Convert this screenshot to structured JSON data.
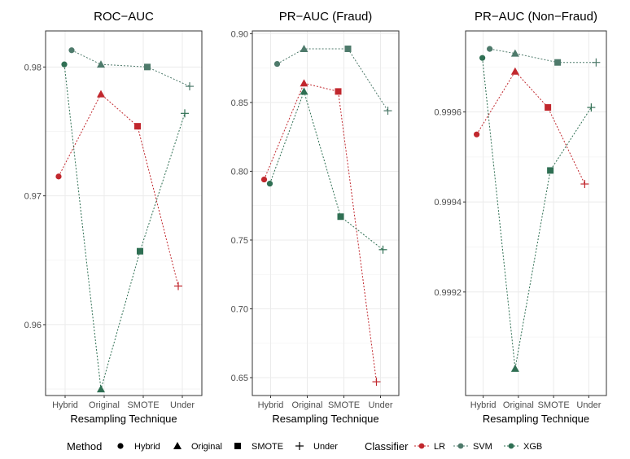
{
  "chart_data": [
    {
      "type": "line",
      "title": "ROC−AUC",
      "xlabel": "Resampling Technique",
      "ylabel": "",
      "categories": [
        "Hybrid",
        "Original",
        "SMOTE",
        "Under"
      ],
      "ylim": [
        0.9545,
        0.9828
      ],
      "yticks": [
        0.96,
        0.97,
        0.98
      ],
      "ytick_labels": [
        "0.96",
        "0.97",
        "0.98"
      ],
      "grid": true,
      "series": [
        {
          "name": "LR",
          "values": [
            0.9715,
            0.9779,
            0.9754,
            0.963
          ]
        },
        {
          "name": "SVM",
          "values": [
            0.9813,
            0.9802,
            0.98,
            0.9785
          ]
        },
        {
          "name": "XGB",
          "values": [
            0.9802,
            0.955,
            0.9657,
            0.9764
          ]
        }
      ]
    },
    {
      "type": "line",
      "title": "PR−AUC (Fraud)",
      "xlabel": "Resampling Technique",
      "ylabel": "",
      "categories": [
        "Hybrid",
        "Original",
        "SMOTE",
        "Under"
      ],
      "ylim": [
        0.637,
        0.902
      ],
      "yticks": [
        0.65,
        0.7,
        0.75,
        0.8,
        0.85,
        0.9
      ],
      "ytick_labels": [
        "0.65",
        "0.70",
        "0.75",
        "0.80",
        "0.85",
        "0.90"
      ],
      "grid": true,
      "series": [
        {
          "name": "LR",
          "values": [
            0.794,
            0.864,
            0.858,
            0.647
          ]
        },
        {
          "name": "SVM",
          "values": [
            0.878,
            0.889,
            0.889,
            0.844
          ]
        },
        {
          "name": "XGB",
          "values": [
            0.791,
            0.858,
            0.767,
            0.743
          ]
        }
      ]
    },
    {
      "type": "line",
      "title": "PR−AUC (Non−Fraud)",
      "xlabel": "Resampling Technique",
      "ylabel": "",
      "categories": [
        "Hybrid",
        "Original",
        "SMOTE",
        "Under"
      ],
      "ylim": [
        0.99897,
        0.99978
      ],
      "yticks": [
        0.9992,
        0.9994,
        0.9996
      ],
      "ytick_labels": [
        "0.9992",
        "0.9994",
        "0.9996"
      ],
      "grid": true,
      "series": [
        {
          "name": "LR",
          "values": [
            0.99955,
            0.99969,
            0.99961,
            0.99944
          ]
        },
        {
          "name": "SVM",
          "values": [
            0.99974,
            0.99973,
            0.99971,
            0.99971
          ]
        },
        {
          "name": "XGB",
          "values": [
            0.99972,
            0.99903,
            0.99947,
            0.99961
          ]
        }
      ]
    }
  ],
  "legend": {
    "method_title": "Method",
    "methods": [
      "Hybrid",
      "Original",
      "SMOTE",
      "Under"
    ],
    "classifier_title": "Classifier",
    "classifiers": [
      "LR",
      "SVM",
      "XGB"
    ],
    "placement": "bottom"
  },
  "colors": {
    "LR": "#c1272d",
    "SVM": "#4e7a6b",
    "XGB": "#2f6f53",
    "grid": "#ebebeb",
    "axis": "#333333"
  },
  "markers": {
    "Hybrid": "circle",
    "Original": "triangle",
    "SMOTE": "square",
    "Under": "plus"
  }
}
